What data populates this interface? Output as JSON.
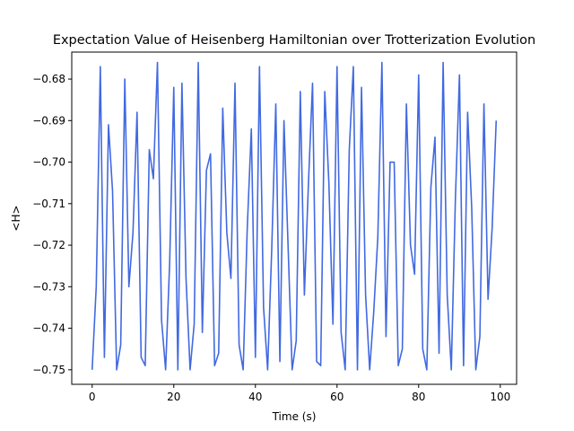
{
  "chart_data": {
    "type": "line",
    "title": "Expectation Value of Heisenberg Hamiltonian over Trotterization Evolution",
    "xlabel": "Time (s)",
    "ylabel": "<H>",
    "xlim": [
      -5,
      104
    ],
    "ylim": [
      -0.7535,
      -0.6735
    ],
    "xticks": [
      0,
      20,
      40,
      60,
      80,
      100
    ],
    "xtick_labels": [
      "0",
      "20",
      "40",
      "60",
      "80",
      "100"
    ],
    "yticks": [
      -0.75,
      -0.74,
      -0.73,
      -0.72,
      -0.71,
      -0.7,
      -0.69,
      -0.68
    ],
    "ytick_labels": [
      "−0.75",
      "−0.74",
      "−0.73",
      "−0.72",
      "−0.71",
      "−0.70",
      "−0.69",
      "−0.68"
    ],
    "grid": false,
    "color": "#4169e1",
    "series": [
      {
        "x": [
          0,
          1,
          2,
          3,
          4,
          5,
          6,
          7,
          8,
          9,
          10,
          11,
          12,
          13,
          14,
          15,
          16,
          17,
          18,
          19,
          20,
          21,
          22,
          23,
          24,
          25,
          26,
          27,
          28,
          29,
          30,
          31,
          32,
          33,
          34,
          35,
          36,
          37,
          38,
          39,
          40,
          41,
          42,
          43,
          44,
          45,
          46,
          47,
          48,
          49,
          50,
          51,
          52,
          53,
          54,
          55,
          56,
          57,
          58,
          59,
          60,
          61,
          62,
          63,
          64,
          65,
          66,
          67,
          68,
          69,
          70,
          71,
          72,
          73,
          74,
          75,
          76,
          77,
          78,
          79,
          80,
          81,
          82,
          83,
          84,
          85,
          86,
          87,
          88,
          89,
          90,
          91,
          92,
          93,
          94,
          95,
          96,
          97,
          98,
          99
        ],
        "values": [
          -0.75,
          -0.73,
          -0.677,
          -0.747,
          -0.691,
          -0.707,
          -0.75,
          -0.744,
          -0.68,
          -0.73,
          -0.717,
          -0.688,
          -0.747,
          -0.749,
          -0.697,
          -0.704,
          -0.676,
          -0.738,
          -0.75,
          -0.724,
          -0.682,
          -0.75,
          -0.681,
          -0.728,
          -0.75,
          -0.739,
          -0.676,
          -0.741,
          -0.702,
          -0.698,
          -0.749,
          -0.746,
          -0.687,
          -0.717,
          -0.728,
          -0.681,
          -0.744,
          -0.75,
          -0.716,
          -0.692,
          -0.747,
          -0.677,
          -0.735,
          -0.75,
          -0.721,
          -0.686,
          -0.748,
          -0.69,
          -0.72,
          -0.75,
          -0.743,
          -0.683,
          -0.732,
          -0.705,
          -0.681,
          -0.748,
          -0.749,
          -0.683,
          -0.705,
          -0.739,
          -0.677,
          -0.741,
          -0.75,
          -0.697,
          -0.677,
          -0.75,
          -0.682,
          -0.732,
          -0.75,
          -0.736,
          -0.718,
          -0.676,
          -0.742,
          -0.7,
          -0.7,
          -0.749,
          -0.745,
          -0.686,
          -0.72,
          -0.727,
          -0.679,
          -0.745,
          -0.75,
          -0.706,
          -0.694,
          -0.746,
          -0.676,
          -0.732,
          -0.75,
          -0.709,
          -0.679,
          -0.749,
          -0.688,
          -0.711,
          -0.75,
          -0.742,
          -0.686,
          -0.733,
          -0.716,
          -0.69
        ]
      }
    ]
  }
}
